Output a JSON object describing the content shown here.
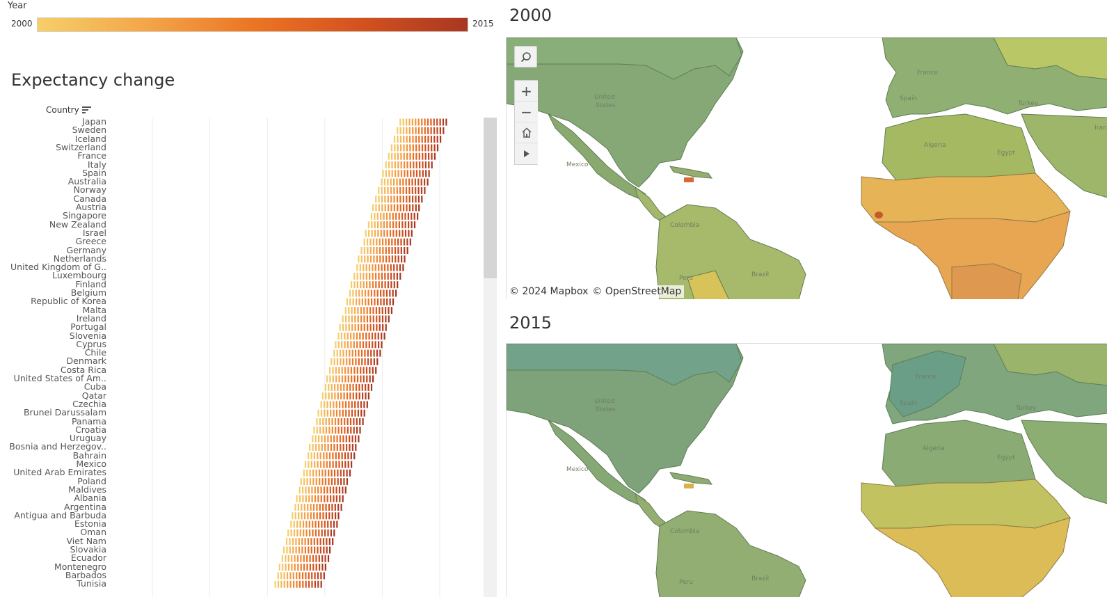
{
  "legend": {
    "title": "Year",
    "min_label": "2000",
    "max_label": "2015",
    "colors": [
      "#f5cf6b",
      "#f4a649",
      "#ec7524",
      "#d3521f",
      "#a83721"
    ]
  },
  "chart": {
    "title": "Expectancy change",
    "country_header": "Country",
    "countries": [
      "Japan",
      "Sweden",
      "Iceland",
      "Switzerland",
      "France",
      "Italy",
      "Spain",
      "Australia",
      "Norway",
      "Canada",
      "Austria",
      "Singapore",
      "New Zealand",
      "Israel",
      "Greece",
      "Germany",
      "Netherlands",
      "United Kingdom of G..",
      "Luxembourg",
      "Finland",
      "Belgium",
      "Republic of Korea",
      "Malta",
      "Ireland",
      "Portugal",
      "Slovenia",
      "Cyprus",
      "Chile",
      "Denmark",
      "Costa Rica",
      "United States of Am..",
      "Cuba",
      "Qatar",
      "Czechia",
      "Brunei Darussalam",
      "Panama",
      "Croatia",
      "Uruguay",
      "Bosnia and Herzegov..",
      "Bahrain",
      "Mexico",
      "United Arab Emirates",
      "Poland",
      "Maldives",
      "Albania",
      "Argentina",
      "Antigua and Barbuda",
      "Estonia",
      "Oman",
      "Viet Nam",
      "Slovakia",
      "Ecuador",
      "Montenegro",
      "Barbados",
      "Tunisia"
    ],
    "row_centers": [
      81.8,
      81.6,
      81.4,
      81.2,
      81.0,
      80.8,
      80.6,
      80.5,
      80.3,
      80.1,
      79.9,
      79.8,
      79.6,
      79.4,
      79.3,
      79.1,
      78.9,
      78.8,
      78.6,
      78.4,
      78.3,
      78.1,
      78.0,
      77.8,
      77.6,
      77.5,
      77.3,
      77.2,
      77.0,
      76.9,
      76.7,
      76.6,
      76.4,
      76.3,
      76.1,
      76.0,
      75.8,
      75.7,
      75.5,
      75.4,
      75.2,
      75.1,
      74.9,
      74.8,
      74.6,
      74.5,
      74.3,
      74.2,
      74.0,
      73.9,
      73.7,
      73.6,
      73.4,
      73.3,
      73.1
    ],
    "x_range": [
      60,
      86
    ],
    "gridlines": [
      63,
      67,
      71,
      75,
      79,
      83
    ]
  },
  "map_2000": {
    "title": "2000"
  },
  "map_2015": {
    "title": "2015"
  },
  "map_tools": [
    "search-icon",
    "zoom-in-icon",
    "zoom-out-icon",
    "home-icon",
    "play-icon"
  ],
  "attribution": {
    "mapbox": "© 2024 Mapbox",
    "osm": "© OpenStreetMap"
  },
  "map_labels": {
    "us": "United\nStates",
    "mexico": "Mexico",
    "colombia": "Colombia",
    "brazil": "Brazil",
    "peru": "Peru",
    "algeria": "Algeria",
    "egypt": "Egypt",
    "turkey": "Turkey",
    "france": "France",
    "spain": "Spain",
    "iran": "Iran"
  }
}
